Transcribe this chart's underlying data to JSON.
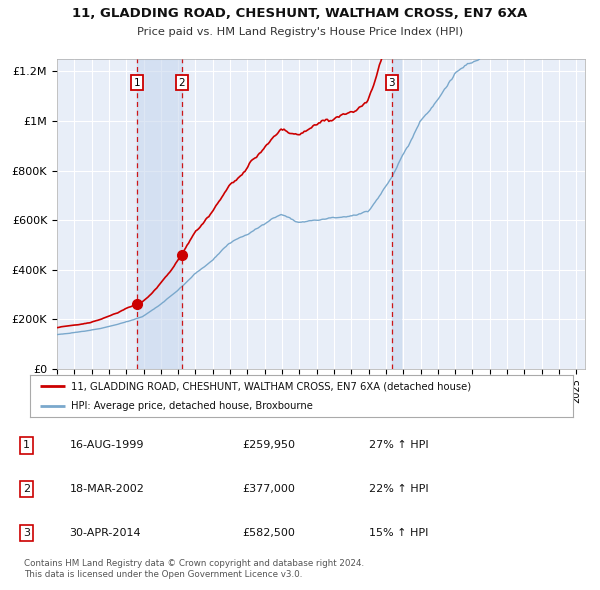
{
  "title": "11, GLADDING ROAD, CHESHUNT, WALTHAM CROSS, EN7 6XA",
  "subtitle": "Price paid vs. HM Land Registry's House Price Index (HPI)",
  "ylim": [
    0,
    1250000
  ],
  "xlim_start": 1995.0,
  "xlim_end": 2025.5,
  "background_color": "#ffffff",
  "plot_bg_color": "#e8eef8",
  "grid_color": "#ffffff",
  "sale_color": "#cc0000",
  "hpi_color": "#7aa8cc",
  "sale_label": "11, GLADDING ROAD, CHESHUNT, WALTHAM CROSS, EN7 6XA (detached house)",
  "hpi_label": "HPI: Average price, detached house, Broxbourne",
  "transactions": [
    {
      "num": 1,
      "date": 1999.62,
      "price": 259950,
      "label": "1"
    },
    {
      "num": 2,
      "date": 2002.21,
      "price": 377000,
      "label": "2"
    },
    {
      "num": 3,
      "date": 2014.33,
      "price": 582500,
      "label": "3"
    }
  ],
  "table_rows": [
    {
      "num": "1",
      "date": "16-AUG-1999",
      "price": "£259,950",
      "info": "27% ↑ HPI"
    },
    {
      "num": "2",
      "date": "18-MAR-2002",
      "price": "£377,000",
      "info": "22% ↑ HPI"
    },
    {
      "num": "3",
      "date": "30-APR-2014",
      "price": "£582,500",
      "info": "15% ↑ HPI"
    }
  ],
  "footer": "Contains HM Land Registry data © Crown copyright and database right 2024.\nThis data is licensed under the Open Government Licence v3.0.",
  "yticks": [
    0,
    200000,
    400000,
    600000,
    800000,
    1000000,
    1200000
  ],
  "ytick_labels": [
    "£0",
    "£200K",
    "£400K",
    "£600K",
    "£800K",
    "£1M",
    "£1.2M"
  ]
}
